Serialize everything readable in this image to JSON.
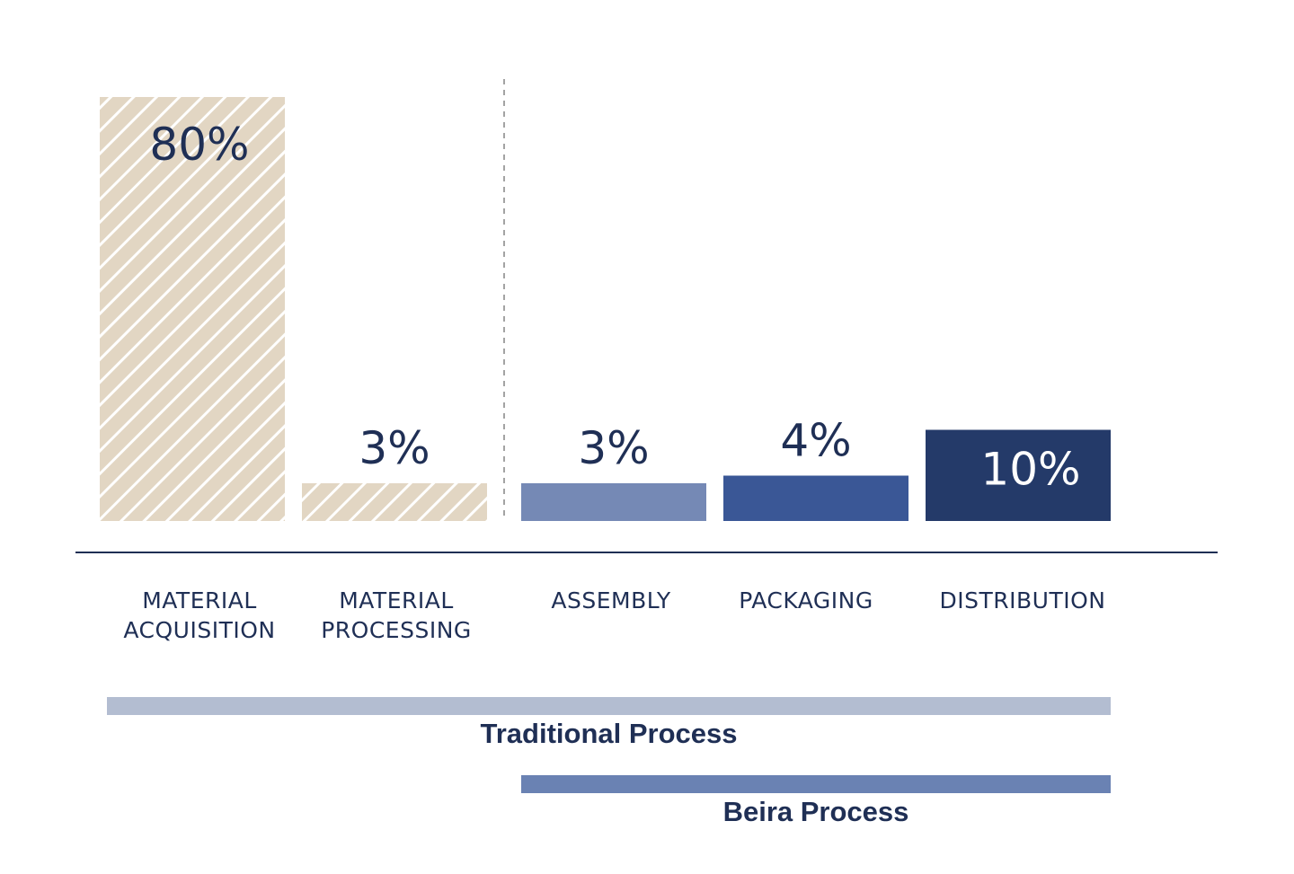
{
  "chart_data": {
    "type": "bar",
    "categories": [
      [
        "MATERIAL",
        "ACQUISITION"
      ],
      [
        "MATERIAL",
        "PROCESSING"
      ],
      [
        "ASSEMBLY"
      ],
      [
        "PACKAGING"
      ],
      [
        "DISTRIBUTION"
      ]
    ],
    "values": [
      80,
      3,
      3,
      4,
      10
    ],
    "value_labels": [
      "80%",
      "3%",
      "3%",
      "4%",
      "10%"
    ],
    "bar_styles": [
      "hatched",
      "hatched",
      "solid",
      "solid",
      "solid"
    ],
    "colors": [
      "#e2d6c3",
      "#e2d6c3",
      "#7589b5",
      "#3a5796",
      "#243a69"
    ],
    "label_colors": [
      "#1f2f55",
      "#1f2f55",
      "#1f2f55",
      "#1f2f55",
      "#ffffff"
    ],
    "label_position": [
      "inside",
      "above",
      "above",
      "above",
      "inside"
    ],
    "ylim": [
      0,
      80
    ],
    "divider_after_category": 1,
    "grid": false,
    "processes": [
      {
        "label": "Traditional Process",
        "from": 0,
        "to": 4,
        "color": "#b3bdd1"
      },
      {
        "label": "Beira Process",
        "from": 2,
        "to": 4,
        "color": "#6a82b3"
      }
    ]
  }
}
